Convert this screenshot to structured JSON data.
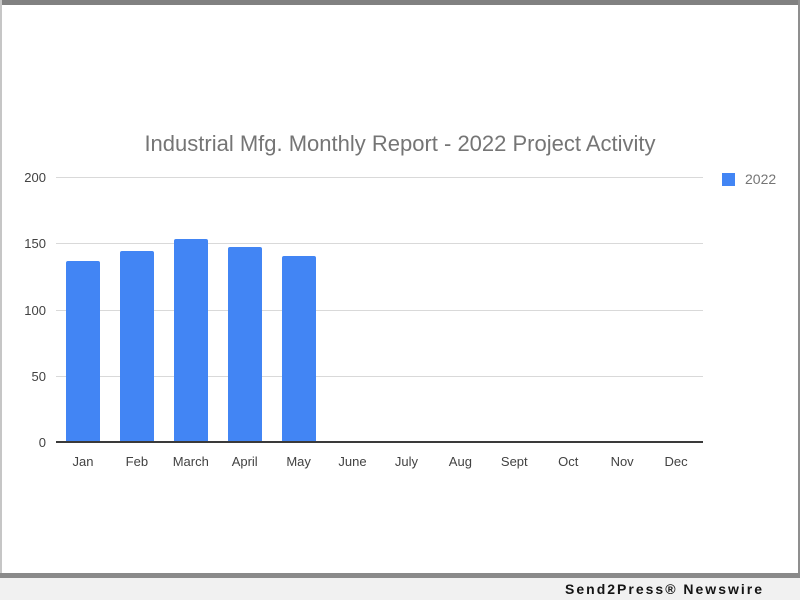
{
  "footer": {
    "brand": "Send2Press® Newswire"
  },
  "chart_data": {
    "type": "bar",
    "title": "Industrial Mfg. Monthly Report - 2022 Project Activity",
    "categories": [
      "Jan",
      "Feb",
      "March",
      "April",
      "May",
      "June",
      "July",
      "Aug",
      "Sept",
      "Oct",
      "Nov",
      "Dec"
    ],
    "series": [
      {
        "name": "2022",
        "values": [
          137,
          145,
          154,
          148,
          141,
          null,
          null,
          null,
          null,
          null,
          null,
          null
        ]
      }
    ],
    "xlabel": "",
    "ylabel": "",
    "ylim": [
      0,
      200
    ],
    "yticks": [
      0,
      50,
      100,
      150,
      200
    ],
    "grid": true,
    "legend_position": "top-right",
    "colors": {
      "bar": "#4285F4",
      "title_text": "#757575",
      "axis_text": "#424242",
      "legend_text": "#757575",
      "gridline": "#d9d9d9",
      "baseline": "#3a3a3a",
      "frame": "#8a8a8a",
      "footer_bg": "#f1f1f1",
      "footer_text": "#141414"
    }
  }
}
